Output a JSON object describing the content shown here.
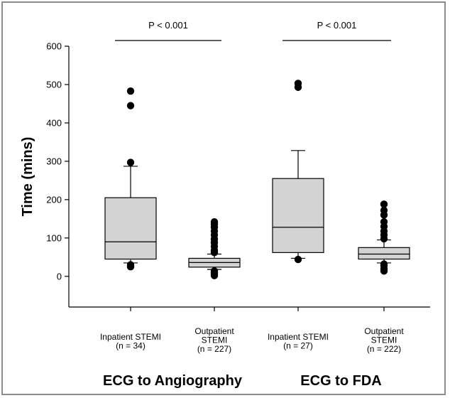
{
  "chart_data": {
    "type": "box",
    "ylabel": "Time (mins)",
    "ylim": [
      -80,
      600
    ],
    "yticks": [
      0,
      100,
      200,
      300,
      400,
      500,
      600
    ],
    "grid": false,
    "box_color": "#d3d3d3",
    "boxes": [
      {
        "label_lines": [
          "Inpatient STEMI",
          "(n = 34)"
        ],
        "whisker_low": 35,
        "q1": 45,
        "median": 90,
        "q3": 205,
        "whisker_high": 287,
        "outliers": [
          25,
          30,
          297,
          445,
          483
        ]
      },
      {
        "label_lines": [
          "Outpatient",
          "STEMI",
          "(n = 227)"
        ],
        "whisker_low": 18,
        "q1": 24,
        "median": 36,
        "q3": 47,
        "whisker_high": 58,
        "outliers": [
          2,
          6,
          10,
          14,
          62,
          68,
          78,
          88,
          97,
          108,
          118,
          128,
          136,
          142
        ]
      },
      {
        "label_lines": [
          "Inpatient STEMI",
          "(n = 27)"
        ],
        "whisker_low": 47,
        "q1": 62,
        "median": 128,
        "q3": 255,
        "whisker_high": 328,
        "outliers": [
          44,
          493,
          503
        ]
      },
      {
        "label_lines": [
          "Outpatient",
          "STEMI",
          "(n = 222)"
        ],
        "whisker_low": 35,
        "q1": 45,
        "median": 58,
        "q3": 75,
        "whisker_high": 95,
        "outliers": [
          14,
          20,
          28,
          32,
          98,
          108,
          118,
          130,
          142,
          160,
          172,
          188
        ]
      }
    ],
    "comparisons": [
      {
        "label": "P < 0.001",
        "from": 0,
        "to": 1
      },
      {
        "label": "P < 0.001",
        "from": 2,
        "to": 3
      }
    ],
    "groups": [
      {
        "label": "ECG to Angiography",
        "boxes": [
          0,
          1
        ]
      },
      {
        "label": "ECG to FDA",
        "boxes": [
          2,
          3
        ]
      }
    ]
  }
}
